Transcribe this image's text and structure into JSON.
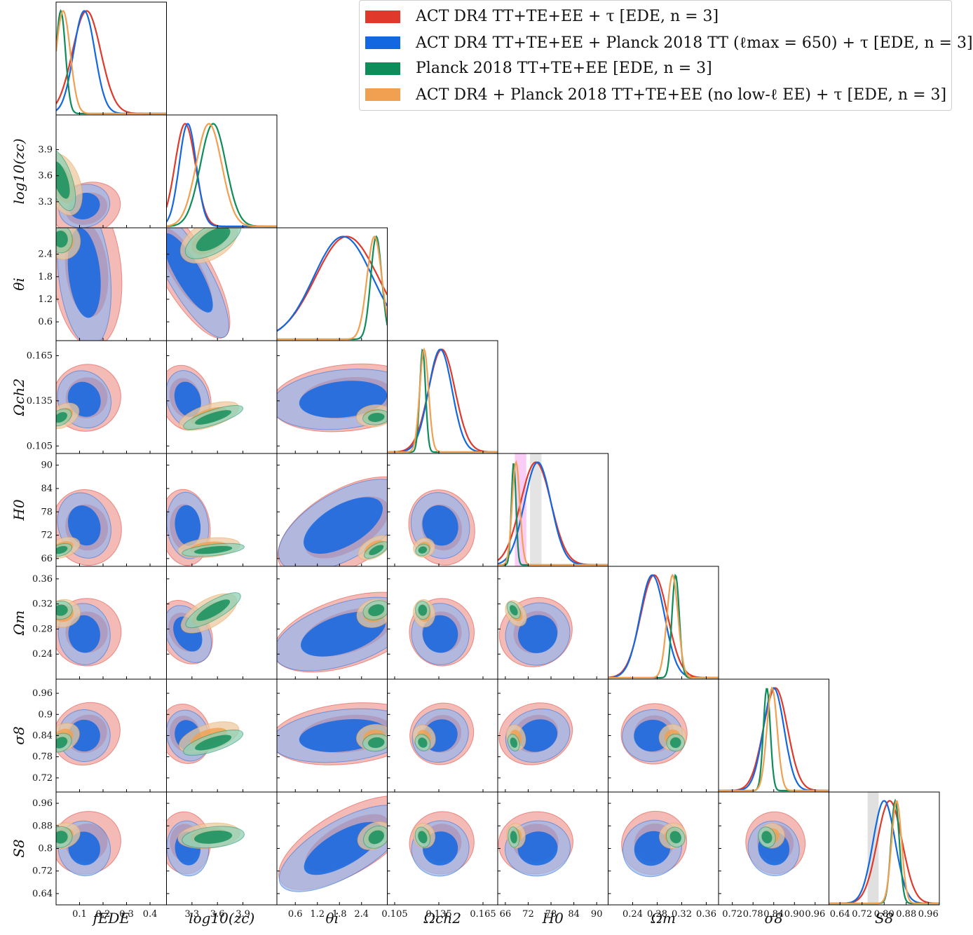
{
  "chart_data": {
    "type": "corner",
    "params": [
      {
        "key": "fEDE",
        "label": "fEDE",
        "range": [
          0,
          0.47
        ],
        "ticks": [
          0.1,
          0.2,
          0.3,
          0.4
        ],
        "tick_labels": [
          "0.1",
          "0.2",
          "0.3",
          "0.4"
        ]
      },
      {
        "key": "logzc",
        "label": "log10(zc)",
        "range": [
          3.0,
          4.3
        ],
        "ticks": [
          3.3,
          3.6,
          3.9
        ],
        "tick_labels": [
          "3.3",
          "3.6",
          "3.9"
        ]
      },
      {
        "key": "theta_i",
        "label": "θi",
        "range": [
          0.1,
          3.1
        ],
        "ticks": [
          0.6,
          1.2,
          1.8,
          2.4
        ],
        "tick_labels": [
          "0.6",
          "1.2",
          "1.8",
          "2.4"
        ]
      },
      {
        "key": "omch2",
        "label": "Ωch2",
        "range": [
          0.1,
          0.175
        ],
        "ticks": [
          0.105,
          0.135,
          0.165
        ],
        "tick_labels": [
          "0.105",
          "0.135",
          "0.165"
        ]
      },
      {
        "key": "H0",
        "label": "H0",
        "range": [
          64,
          93
        ],
        "ticks": [
          66,
          72,
          78,
          84,
          90
        ],
        "tick_labels": [
          "66",
          "72",
          "78",
          "84",
          "90"
        ]
      },
      {
        "key": "omegam",
        "label": "Ωm",
        "range": [
          0.2,
          0.38
        ],
        "ticks": [
          0.24,
          0.28,
          0.32,
          0.36
        ],
        "tick_labels": [
          "0.24",
          "0.28",
          "0.32",
          "0.36"
        ]
      },
      {
        "key": "sigma8",
        "label": "σ8",
        "range": [
          0.68,
          1.0
        ],
        "ticks": [
          0.72,
          0.78,
          0.84,
          0.9,
          0.96
        ],
        "tick_labels": [
          "0.72",
          "0.78",
          "0.84",
          "0.90",
          "0.96"
        ],
        "y_tick_labels": [
          "0.72",
          "0.78",
          "0.84",
          "0.9",
          "0.96"
        ]
      },
      {
        "key": "S8",
        "label": "S8",
        "range": [
          0.6,
          1.0
        ],
        "ticks": [
          0.64,
          0.72,
          0.8,
          0.88,
          0.96
        ],
        "tick_labels": [
          "0.64",
          "0.72",
          "0.80",
          "0.88",
          "0.96"
        ],
        "y_tick_labels": [
          "0.64",
          "0.72",
          "0.8",
          "0.88",
          "0.96"
        ]
      }
    ],
    "series": [
      {
        "name": "ACT DR4 TT+TE+EE + τ [EDE, n = 3]",
        "color": "#e0382b",
        "light": "#f0a39e",
        "mean": [
          0.13,
          3.22,
          2.0,
          0.137,
          74.0,
          0.275,
          0.845,
          0.82
        ],
        "sd": [
          0.06,
          0.12,
          0.85,
          0.009,
          4.0,
          0.022,
          0.035,
          0.045
        ]
      },
      {
        "name": "ACT DR4 TT+TE+EE + Planck 2018 TT (ℓmax = 650) + τ [EDE, n = 3]",
        "color": "#1367e0",
        "light": "#9cb7ea",
        "mean": [
          0.12,
          3.25,
          1.9,
          0.136,
          74.5,
          0.272,
          0.84,
          0.8
        ],
        "sd": [
          0.045,
          0.1,
          0.8,
          0.008,
          3.5,
          0.02,
          0.03,
          0.04
        ]
      },
      {
        "name": "Planck 2018 TT+TE+EE [EDE, n = 3]",
        "color": "#0e8c5a",
        "light": "#8fd0b6",
        "mean": [
          0.02,
          3.55,
          2.8,
          0.124,
          68.2,
          0.31,
          0.82,
          0.84
        ],
        "sd": [
          0.02,
          0.15,
          0.15,
          0.002,
          0.6,
          0.006,
          0.01,
          0.015
        ]
      },
      {
        "name": "ACT DR4 + Planck 2018 TT+TE+EE (no low-ℓ EE) + τ [EDE, n = 3]",
        "color": "#f0a050",
        "light": "#eccaa0",
        "mean": [
          0.03,
          3.5,
          2.75,
          0.125,
          68.8,
          0.305,
          0.835,
          0.845
        ],
        "sd": [
          0.03,
          0.15,
          0.2,
          0.003,
          1.0,
          0.009,
          0.015,
          0.018
        ]
      }
    ],
    "h0_band": {
      "color": "#f6b8f2",
      "range": [
        68.5,
        71.5
      ]
    },
    "h0_band_grey": {
      "color": "#d8d8d8",
      "range": [
        72.5,
        75.5
      ]
    },
    "s8_band_grey": {
      "color": "#d8d8d8",
      "range": [
        0.74,
        0.78
      ]
    }
  },
  "legend": {
    "items": [
      {
        "label": "ACT DR4 TT+TE+EE + τ [EDE, n = 3]",
        "color": "#e0382b"
      },
      {
        "label": "ACT DR4 TT+TE+EE + Planck 2018 TT (ℓmax = 650) + τ [EDE, n = 3]",
        "color": "#1367e0"
      },
      {
        "label": "Planck 2018 TT+TE+EE [EDE, n = 3]",
        "color": "#0e8c5a"
      },
      {
        "label": "ACT DR4 + Planck 2018 TT+TE+EE (no low-ℓ EE) + τ [EDE, n = 3]",
        "color": "#f0a050"
      }
    ]
  }
}
